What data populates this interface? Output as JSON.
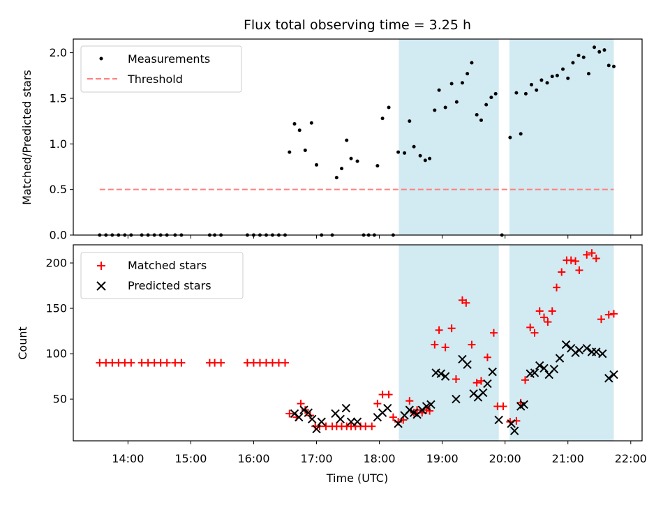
{
  "figure": {
    "title": "Flux total observing time = 3.25 h"
  },
  "colors": {
    "shade": "#add8e6",
    "measurements": "#000000",
    "threshold": "#ff7f7f",
    "matched": "#ff0000",
    "predicted": "#000000"
  },
  "chart_data": [
    {
      "type": "scatter",
      "ylabel": "Matched/Predicted stars",
      "xlim_hours": [
        13.13,
        22.18
      ],
      "ylim": [
        0,
        2.15
      ],
      "yticks": [
        0.0,
        0.5,
        1.0,
        1.5,
        2.0
      ],
      "ytick_labels": [
        "0.0",
        "0.5",
        "1.0",
        "1.5",
        "2.0"
      ],
      "legend_placement": "top-left",
      "legend": [
        "Measurements",
        "Threshold"
      ],
      "shaded_intervals_hours": [
        [
          18.31,
          19.9
        ],
        [
          20.07,
          21.73
        ]
      ],
      "threshold": {
        "name": "Threshold",
        "y": 0.5,
        "x_range_hours": [
          13.55,
          21.73
        ]
      },
      "series": [
        {
          "name": "Measurements",
          "marker": "dot",
          "x_hours": [
            13.55,
            13.65,
            13.75,
            13.85,
            13.95,
            14.05,
            14.22,
            14.32,
            14.42,
            14.52,
            14.62,
            14.75,
            14.85,
            15.3,
            15.38,
            15.48,
            15.9,
            16.0,
            16.1,
            16.2,
            16.3,
            16.4,
            16.5,
            16.57,
            16.65,
            16.73,
            16.82,
            16.92,
            17.0,
            17.08,
            17.25,
            17.32,
            17.4,
            17.48,
            17.55,
            17.65,
            17.75,
            17.83,
            17.92,
            17.97,
            18.05,
            18.15,
            18.22,
            18.3,
            18.4,
            18.48,
            18.55,
            18.65,
            18.73,
            18.8,
            18.88,
            18.95,
            19.05,
            19.15,
            19.23,
            19.32,
            19.4,
            19.47,
            19.55,
            19.62,
            19.7,
            19.78,
            19.85,
            19.95,
            20.08,
            20.18,
            20.25,
            20.33,
            20.42,
            20.5,
            20.58,
            20.67,
            20.75,
            20.83,
            20.92,
            21.0,
            21.08,
            21.17,
            21.25,
            21.33,
            21.42,
            21.5,
            21.58,
            21.65,
            21.73
          ],
          "y": [
            0,
            0,
            0,
            0,
            0,
            0,
            0,
            0,
            0,
            0,
            0,
            0,
            0,
            0,
            0,
            0,
            0,
            0,
            0,
            0,
            0,
            0,
            0,
            0.91,
            1.22,
            1.15,
            0.93,
            1.23,
            0.77,
            0,
            0,
            0.63,
            0.73,
            1.04,
            0.84,
            0.81,
            0,
            0,
            0,
            0.76,
            1.28,
            1.4,
            0,
            0.91,
            0.9,
            1.25,
            0.97,
            0.87,
            0.82,
            0.84,
            1.37,
            1.59,
            1.4,
            1.66,
            1.46,
            1.67,
            1.77,
            1.89,
            1.32,
            1.26,
            1.43,
            1.51,
            1.55,
            0,
            1.07,
            1.56,
            1.11,
            1.55,
            1.65,
            1.59,
            1.7,
            1.67,
            1.74,
            1.75,
            1.82,
            1.72,
            1.89,
            1.97,
            1.95,
            1.77,
            2.06,
            2.01,
            2.03,
            1.86,
            1.85
          ]
        }
      ]
    },
    {
      "type": "scatter",
      "xlabel": "Time (UTC)",
      "ylabel": "Count",
      "xlim_hours": [
        13.13,
        22.18
      ],
      "ylim": [
        4,
        220
      ],
      "yticks": [
        50,
        100,
        150,
        200
      ],
      "ytick_labels": [
        "50",
        "100",
        "150",
        "200"
      ],
      "xticks_hours": [
        14,
        15,
        16,
        17,
        18,
        19,
        20,
        21,
        22
      ],
      "xtick_labels": [
        "14:00",
        "15:00",
        "16:00",
        "17:00",
        "18:00",
        "19:00",
        "20:00",
        "21:00",
        "22:00"
      ],
      "legend_placement": "top-left",
      "legend": [
        "Matched stars",
        "Predicted stars"
      ],
      "shaded_intervals_hours": [
        [
          18.31,
          19.9
        ],
        [
          20.07,
          21.73
        ]
      ],
      "series": [
        {
          "name": "Matched stars",
          "marker": "plus",
          "x_hours": [
            13.55,
            13.65,
            13.75,
            13.85,
            13.95,
            14.05,
            14.22,
            14.32,
            14.42,
            14.52,
            14.62,
            14.75,
            14.85,
            15.3,
            15.38,
            15.48,
            15.9,
            16.0,
            16.1,
            16.2,
            16.3,
            16.4,
            16.5,
            16.57,
            16.68,
            16.75,
            16.82,
            16.9,
            16.98,
            17.05,
            17.15,
            17.25,
            17.32,
            17.4,
            17.48,
            17.55,
            17.62,
            17.7,
            17.78,
            17.88,
            17.97,
            18.05,
            18.15,
            18.22,
            18.3,
            18.38,
            18.48,
            18.55,
            18.6,
            18.68,
            18.75,
            18.8,
            18.88,
            18.95,
            19.05,
            19.15,
            19.22,
            19.32,
            19.38,
            19.47,
            19.55,
            19.62,
            19.72,
            19.82,
            19.88,
            19.97,
            20.08,
            20.18,
            20.25,
            20.32,
            20.4,
            20.47,
            20.55,
            20.62,
            20.68,
            20.75,
            20.82,
            20.9,
            20.98,
            21.05,
            21.12,
            21.18,
            21.3,
            21.38,
            21.45,
            21.53,
            21.65,
            21.73
          ],
          "y": [
            90,
            90,
            90,
            90,
            90,
            90,
            90,
            90,
            90,
            90,
            90,
            90,
            90,
            90,
            90,
            90,
            90,
            90,
            90,
            90,
            90,
            90,
            90,
            34,
            30,
            45,
            38,
            32,
            20,
            20,
            20,
            20,
            20,
            20,
            20,
            20,
            20,
            20,
            20,
            20,
            45,
            55,
            55,
            30,
            25,
            27,
            48,
            35,
            38,
            35,
            38,
            37,
            110,
            126,
            107,
            128,
            72,
            159,
            156,
            110,
            68,
            70,
            96,
            123,
            42,
            42,
            25,
            26,
            46,
            71,
            129,
            123,
            147,
            140,
            135,
            147,
            173,
            190,
            203,
            203,
            202,
            192,
            209,
            211,
            205,
            138,
            143,
            144
          ]
        },
        {
          "name": "Predicted stars",
          "marker": "x",
          "x_hours": [
            16.65,
            16.72,
            16.8,
            16.87,
            16.93,
            17.0,
            17.08,
            17.3,
            17.38,
            17.47,
            17.55,
            17.65,
            17.97,
            18.05,
            18.13,
            18.3,
            18.4,
            18.48,
            18.55,
            18.6,
            18.68,
            18.75,
            18.82,
            18.9,
            18.98,
            19.05,
            19.22,
            19.32,
            19.4,
            19.5,
            19.57,
            19.65,
            19.72,
            19.8,
            19.9,
            20.1,
            20.15,
            20.25,
            20.3,
            20.4,
            20.47,
            20.55,
            20.62,
            20.7,
            20.78,
            20.87,
            20.97,
            21.05,
            21.12,
            21.18,
            21.3,
            21.38,
            21.45,
            21.55,
            21.65,
            21.73
          ],
          "y": [
            34,
            30,
            38,
            35,
            28,
            17,
            25,
            34,
            28,
            40,
            25,
            25,
            30,
            35,
            40,
            23,
            32,
            38,
            35,
            33,
            38,
            42,
            44,
            79,
            78,
            75,
            50,
            94,
            88,
            56,
            52,
            57,
            67,
            80,
            27,
            23,
            15,
            42,
            44,
            78,
            79,
            87,
            84,
            77,
            83,
            95,
            110,
            106,
            101,
            104,
            106,
            102,
            102,
            100,
            73,
            77
          ]
        }
      ]
    }
  ]
}
